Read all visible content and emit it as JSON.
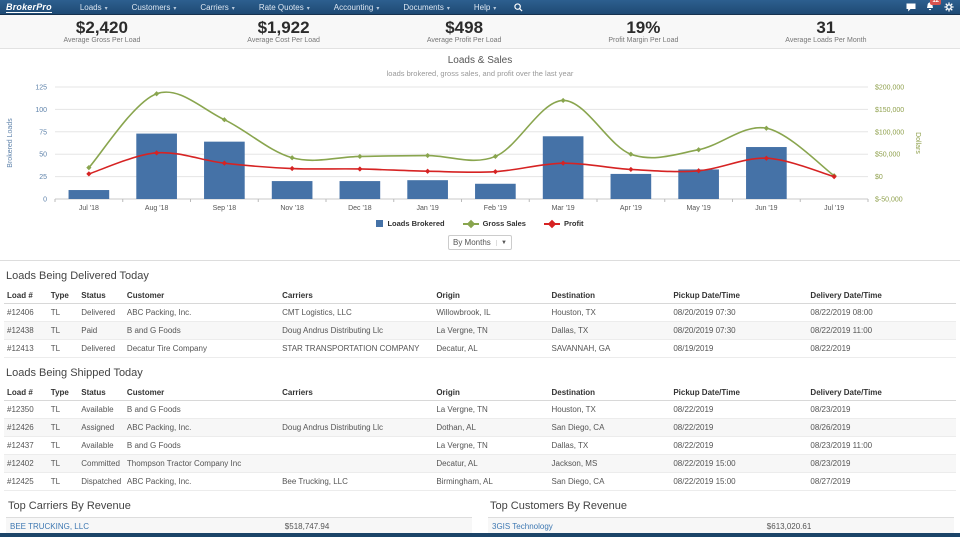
{
  "nav": {
    "brand": "BrokerPro",
    "items": [
      "Loads",
      "Customers",
      "Carriers",
      "Rate Quotes",
      "Accounting",
      "Documents",
      "Help"
    ],
    "notification_count": "12"
  },
  "kpis": [
    {
      "value": "$2,420",
      "label": "Average Gross Per Load"
    },
    {
      "value": "$1,922",
      "label": "Average Cost Per Load"
    },
    {
      "value": "$498",
      "label": "Average Profit Per Load"
    },
    {
      "value": "19%",
      "label": "Profit Margin Per Load"
    },
    {
      "value": "31",
      "label": "Average Loads Per Month"
    }
  ],
  "chart_data": {
    "type": "bar+line combo",
    "title": "Loads & Sales",
    "subtitle": "loads brokered, gross sales, and profit over the last year",
    "categories": [
      "Jul '18",
      "Aug '18",
      "Sep '18",
      "Nov '18",
      "Dec '18",
      "Jan '19",
      "Feb '19",
      "Mar '19",
      "Apr '19",
      "May '19",
      "Jun '19",
      "Jul '19"
    ],
    "left_axis": {
      "label": "Brokered Loads",
      "min": 0,
      "max": 125,
      "step": 25,
      "color": "#5f83ab"
    },
    "right_axis": {
      "label": "Dollars",
      "min": -50000,
      "max": 200000,
      "step": 50000,
      "color": "#90a14e",
      "tick_labels": [
        "$-50,000",
        "$0",
        "$50,000",
        "$100,000",
        "$150,000",
        "$200,000"
      ]
    },
    "grid": true,
    "legend_position": "bottom",
    "series": [
      {
        "name": "Loads Brokered",
        "type": "bar",
        "axis": "left",
        "color": "#4572a7",
        "values": [
          10,
          73,
          64,
          20,
          20,
          21,
          17,
          70,
          28,
          33,
          58,
          0
        ]
      },
      {
        "name": "Gross Sales",
        "type": "line",
        "axis": "right",
        "color": "#89a54e",
        "values": [
          20000,
          185000,
          127000,
          42000,
          45000,
          47000,
          45000,
          170000,
          50000,
          60000,
          108000,
          2000
        ]
      },
      {
        "name": "Profit",
        "type": "line",
        "axis": "right",
        "color": "#d62323",
        "values": [
          6000,
          53000,
          30000,
          18000,
          17000,
          12000,
          11000,
          30000,
          16000,
          13000,
          41000,
          0
        ]
      }
    ]
  },
  "period_select": {
    "value": "By Months"
  },
  "delivered": {
    "title": "Loads Being Delivered Today",
    "columns": [
      "Load #",
      "Type",
      "Status",
      "Customer",
      "Carriers",
      "Origin",
      "Destination",
      "Pickup Date/Time",
      "Delivery Date/Time"
    ],
    "rows": [
      [
        "#12406",
        "TL",
        "Delivered",
        "ABC Packing, Inc.",
        "CMT Logistics, LLC",
        "Willowbrook, IL",
        "Houston, TX",
        "08/20/2019 07:30",
        "08/22/2019 08:00"
      ],
      [
        "#12438",
        "TL",
        "Paid",
        "B and G Foods",
        "Doug Andrus Distributing Llc",
        "La Vergne, TN",
        "Dallas, TX",
        "08/20/2019 07:30",
        "08/22/2019 11:00"
      ],
      [
        "#12413",
        "TL",
        "Delivered",
        "Decatur Tire Company",
        "STAR TRANSPORTATION COMPANY",
        "Decatur, AL",
        "SAVANNAH, GA",
        "08/19/2019",
        "08/22/2019"
      ]
    ]
  },
  "shipped": {
    "title": "Loads Being Shipped Today",
    "columns": [
      "Load #",
      "Type",
      "Status",
      "Customer",
      "Carriers",
      "Origin",
      "Destination",
      "Pickup Date/Time",
      "Delivery Date/Time"
    ],
    "rows": [
      [
        "#12350",
        "TL",
        "Available",
        "B and G Foods",
        "",
        "La Vergne, TN",
        "Houston, TX",
        "08/22/2019",
        "08/23/2019"
      ],
      [
        "#12426",
        "TL",
        "Assigned",
        "ABC Packing, Inc.",
        "Doug Andrus Distributing Llc",
        "Dothan, AL",
        "San Diego, CA",
        "08/22/2019",
        "08/26/2019"
      ],
      [
        "#12437",
        "TL",
        "Available",
        "B and G Foods",
        "",
        "La Vergne, TN",
        "Dallas, TX",
        "08/22/2019",
        "08/23/2019 11:00"
      ],
      [
        "#12402",
        "TL",
        "Committed",
        "Thompson Tractor Company Inc",
        "",
        "Decatur, AL",
        "Jackson, MS",
        "08/22/2019 15:00",
        "08/23/2019"
      ],
      [
        "#12425",
        "TL",
        "Dispatched",
        "ABC Packing, Inc.",
        "Bee Trucking, LLC",
        "Birmingham, AL",
        "San Diego, CA",
        "08/22/2019 15:00",
        "08/27/2019"
      ]
    ]
  },
  "top_carriers": {
    "title": "Top Carriers By Revenue",
    "rows": [
      {
        "name": "BEE TRUCKING, LLC",
        "amount": "$518,747.94"
      }
    ]
  },
  "top_customers": {
    "title": "Top Customers By Revenue",
    "rows": [
      {
        "name": "3GIS Technology",
        "amount": "$613,020.61"
      }
    ]
  }
}
